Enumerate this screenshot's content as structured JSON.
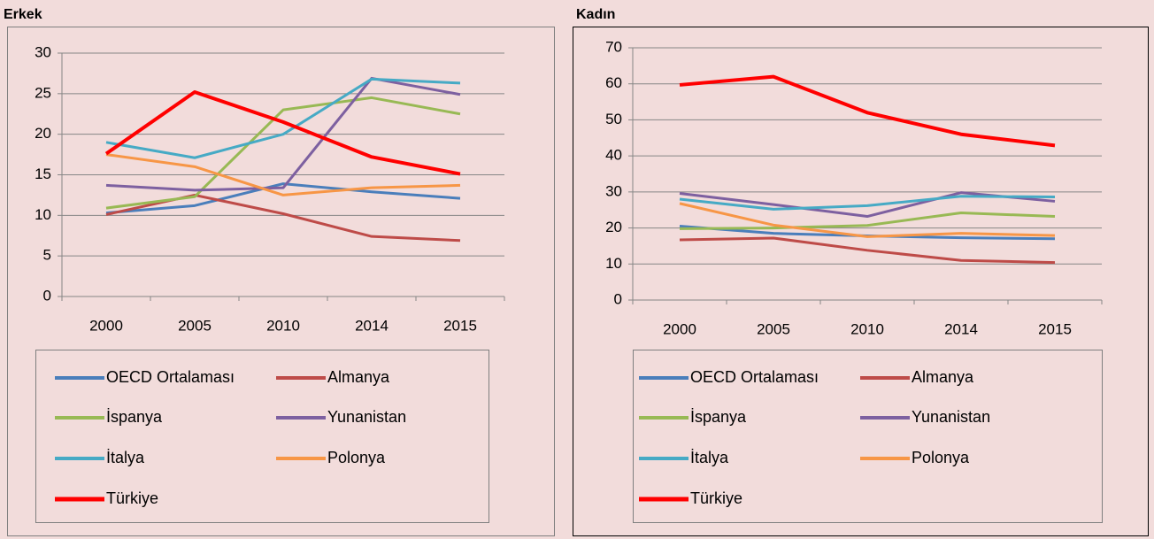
{
  "chart_data": [
    {
      "type": "line",
      "title": "Erkek",
      "categories": [
        "2000",
        "2005",
        "2010",
        "2014",
        "2015"
      ],
      "ylim": [
        0,
        30
      ],
      "yticks": [
        0,
        5,
        10,
        15,
        20,
        25,
        30
      ],
      "grid": true,
      "series": [
        {
          "name": "OECD Ortalaması",
          "color": "#4a7ebb",
          "values": [
            10.3,
            11.2,
            13.9,
            12.9,
            12.1
          ]
        },
        {
          "name": "Almanya",
          "color": "#be4b48",
          "values": [
            10.1,
            12.5,
            10.2,
            7.4,
            6.9
          ]
        },
        {
          "name": "İspanya",
          "color": "#98b954",
          "values": [
            10.9,
            12.3,
            23.0,
            24.5,
            22.5
          ]
        },
        {
          "name": "Yunanistan",
          "color": "#7d60a0",
          "values": [
            13.7,
            13.1,
            13.4,
            26.9,
            24.9
          ]
        },
        {
          "name": "İtalya",
          "color": "#46aac5",
          "values": [
            19.0,
            17.1,
            20.0,
            26.8,
            26.3
          ]
        },
        {
          "name": "Polonya",
          "color": "#f79646",
          "values": [
            17.5,
            16.0,
            12.5,
            13.4,
            13.7
          ]
        },
        {
          "name": "Türkiye",
          "color": "#ff0000",
          "values": [
            17.6,
            25.2,
            21.5,
            17.2,
            15.1
          ]
        }
      ]
    },
    {
      "type": "line",
      "title": "Kadın",
      "categories": [
        "2000",
        "2005",
        "2010",
        "2014",
        "2015"
      ],
      "ylim": [
        0,
        70
      ],
      "yticks": [
        0,
        10,
        20,
        30,
        40,
        50,
        60,
        70
      ],
      "grid": true,
      "series": [
        {
          "name": "OECD Ortalaması",
          "color": "#4a7ebb",
          "values": [
            20.5,
            18.5,
            17.8,
            17.3,
            17.0
          ]
        },
        {
          "name": "Almanya",
          "color": "#be4b48",
          "values": [
            16.7,
            17.2,
            13.8,
            11.0,
            10.4
          ]
        },
        {
          "name": "İspanya",
          "color": "#98b954",
          "values": [
            19.8,
            20.0,
            20.7,
            24.2,
            23.2
          ]
        },
        {
          "name": "Yunanistan",
          "color": "#7d60a0",
          "values": [
            29.6,
            26.5,
            23.2,
            29.8,
            27.4
          ]
        },
        {
          "name": "İtalya",
          "color": "#46aac5",
          "values": [
            28.0,
            25.2,
            26.2,
            28.8,
            28.6
          ]
        },
        {
          "name": "Polonya",
          "color": "#f79646",
          "values": [
            26.8,
            20.8,
            17.6,
            18.5,
            17.9
          ]
        },
        {
          "name": "Türkiye",
          "color": "#ff0000",
          "values": [
            59.7,
            62.0,
            52.0,
            46.0,
            42.9
          ]
        }
      ]
    }
  ]
}
